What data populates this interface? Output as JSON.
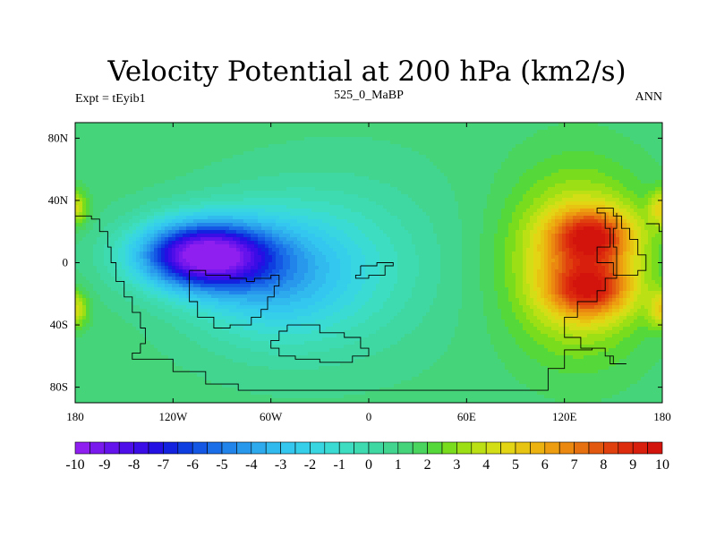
{
  "chart_data": {
    "type": "heatmap",
    "title": "Velocity Potential at 200 hPa (km2/s)",
    "left_label": "Expt = tEyib1",
    "center_label": "525_0_MaBP",
    "right_label": "ANN",
    "xlim": [
      -180,
      180
    ],
    "ylim": [
      -90,
      90
    ],
    "x_ticks": [
      {
        "value": -180,
        "label": "180"
      },
      {
        "value": -120,
        "label": "120W"
      },
      {
        "value": -60,
        "label": "60W"
      },
      {
        "value": 0,
        "label": "0"
      },
      {
        "value": 60,
        "label": "60E"
      },
      {
        "value": 120,
        "label": "120E"
      },
      {
        "value": 180,
        "label": "180"
      }
    ],
    "y_ticks": [
      {
        "value": 80,
        "label": "80N"
      },
      {
        "value": 40,
        "label": "40N"
      },
      {
        "value": 0,
        "label": "0"
      },
      {
        "value": -40,
        "label": "40S"
      },
      {
        "value": -80,
        "label": "80S"
      }
    ],
    "colorbar_levels": [
      -10,
      -9.5,
      -9,
      -8.5,
      -8,
      -7.5,
      -7,
      -6.5,
      -6,
      -5.5,
      -5,
      -4.5,
      -4,
      -3.5,
      -3,
      -2.5,
      -2,
      -1.5,
      -1,
      -0.5,
      0,
      0.5,
      1,
      1.5,
      2,
      2.5,
      3,
      3.5,
      4,
      4.5,
      5,
      5.5,
      6,
      6.5,
      7,
      7.5,
      8,
      8.5,
      9,
      9.5,
      10
    ],
    "colorbar_labels": [
      "-10",
      "-9",
      "-8",
      "-7",
      "-6",
      "-5",
      "-4",
      "-3",
      "-2",
      "-1",
      "0",
      "1",
      "2",
      "3",
      "4",
      "5",
      "6",
      "7",
      "8",
      "9",
      "10"
    ],
    "colorbar_colors": [
      "#8f1ff0",
      "#7a19ee",
      "#6413ec",
      "#4e0eea",
      "#3a0ce6",
      "#2410e2",
      "#1222de",
      "#0f3ee0",
      "#1457e4",
      "#1a6ee8",
      "#2184ea",
      "#2898ec",
      "#2caaed",
      "#30baee",
      "#33c6ee",
      "#35cfea",
      "#38d6e0",
      "#3adbd2",
      "#3cddc0",
      "#3edbb0",
      "#3fd8a2",
      "#42d590",
      "#46d47a",
      "#4ad55e",
      "#55d83a",
      "#79dc1c",
      "#9bdf14",
      "#bbe014",
      "#d4de16",
      "#e3d414",
      "#e8c412",
      "#ebb210",
      "#ec9e10",
      "#ea880f",
      "#e6700f",
      "#e2580e",
      "#df400d",
      "#dc2c0d",
      "#d81e0d",
      "#d2140c"
    ],
    "field_blobs": [
      {
        "lon": -103,
        "lat": 5,
        "sx": 40,
        "sy": 22,
        "amp": -10.1
      },
      {
        "lon": -60,
        "lat": -8,
        "sx": 52,
        "sy": 42,
        "amp": -4.0
      },
      {
        "lon": -10,
        "lat": 0,
        "sx": 60,
        "sy": 55,
        "amp": -1.6
      },
      {
        "lon": 137,
        "lat": 17,
        "sx": 24,
        "sy": 17,
        "amp": 5.2
      },
      {
        "lon": 136,
        "lat": -17,
        "sx": 24,
        "sy": 17,
        "amp": 5.0
      },
      {
        "lon": 128,
        "lat": 0,
        "sx": 42,
        "sy": 55,
        "amp": 4.4
      },
      {
        "lon": -180,
        "lat": 35,
        "sx": 8,
        "sy": 12,
        "amp": 3.0
      },
      {
        "lon": -180,
        "lat": -30,
        "sx": 8,
        "sy": 12,
        "amp": 3.2
      },
      {
        "lon": 180,
        "lat": 35,
        "sx": 8,
        "sy": 12,
        "amp": 3.0
      },
      {
        "lon": 180,
        "lat": -30,
        "sx": 8,
        "sy": 12,
        "amp": 3.2
      }
    ],
    "field_base": 1.2,
    "coastlines": [
      [
        [
          -180,
          30
        ],
        [
          -170,
          28
        ],
        [
          -165,
          20
        ],
        [
          -160,
          10
        ],
        [
          -158,
          0
        ],
        [
          -155,
          -12
        ],
        [
          -150,
          -22
        ],
        [
          -145,
          -32
        ],
        [
          -140,
          -42
        ],
        [
          -137,
          -52
        ],
        [
          -140,
          -58
        ],
        [
          -145,
          -62
        ],
        [
          -133,
          -62
        ],
        [
          -120,
          -70
        ],
        [
          -100,
          -78
        ],
        [
          -80,
          -82
        ],
        [
          -60,
          -82
        ],
        [
          -20,
          -82
        ],
        [
          40,
          -82
        ],
        [
          100,
          -82
        ],
        [
          110,
          -68
        ],
        [
          120,
          -56
        ],
        [
          137,
          -55
        ],
        [
          145,
          -60
        ],
        [
          148,
          -65
        ],
        [
          158,
          -65
        ],
        [
          150,
          -60
        ],
        [
          145,
          -55
        ],
        [
          130,
          -48
        ],
        [
          120,
          -45
        ],
        [
          120,
          -35
        ],
        [
          128,
          -25
        ],
        [
          140,
          -18
        ],
        [
          145,
          -10
        ],
        [
          152,
          -8
        ],
        [
          165,
          -5
        ],
        [
          170,
          5
        ],
        [
          165,
          15
        ],
        [
          160,
          22
        ],
        [
          155,
          30
        ],
        [
          150,
          35
        ],
        [
          140,
          32
        ],
        [
          145,
          22
        ],
        [
          148,
          10
        ],
        [
          140,
          0
        ],
        [
          150,
          -8
        ],
        [
          152,
          0
        ],
        [
          152,
          10
        ],
        [
          150,
          22
        ],
        [
          152,
          32
        ]
      ],
      [
        [
          -110,
          -5
        ],
        [
          -100,
          -8
        ],
        [
          -85,
          -10
        ],
        [
          -75,
          -12
        ],
        [
          -70,
          -10
        ],
        [
          -60,
          -8
        ],
        [
          -55,
          -15
        ],
        [
          -58,
          -22
        ],
        [
          -62,
          -30
        ],
        [
          -66,
          -35
        ],
        [
          -72,
          -40
        ],
        [
          -85,
          -42
        ],
        [
          -95,
          -35
        ],
        [
          -105,
          -25
        ],
        [
          -110,
          -15
        ],
        [
          -110,
          -5
        ]
      ],
      [
        [
          -50,
          -40
        ],
        [
          -30,
          -45
        ],
        [
          -15,
          -48
        ],
        [
          -5,
          -55
        ],
        [
          0,
          -60
        ],
        [
          -10,
          -64
        ],
        [
          -30,
          -62
        ],
        [
          -45,
          -60
        ],
        [
          -55,
          -55
        ],
        [
          -60,
          -50
        ],
        [
          -55,
          -44
        ],
        [
          -50,
          -40
        ]
      ],
      [
        [
          -5,
          -2
        ],
        [
          5,
          0
        ],
        [
          15,
          -2
        ],
        [
          10,
          -8
        ],
        [
          0,
          -10
        ],
        [
          -8,
          -8
        ],
        [
          -5,
          -2
        ]
      ],
      [
        [
          170,
          25
        ],
        [
          178,
          20
        ],
        [
          180,
          10
        ]
      ]
    ]
  }
}
